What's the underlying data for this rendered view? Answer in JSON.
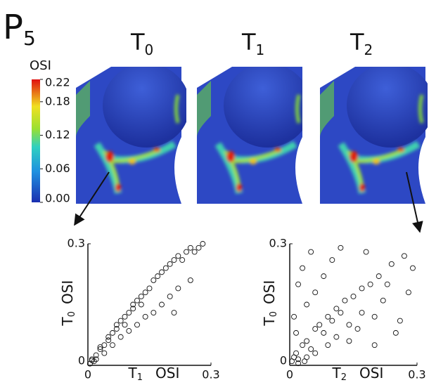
{
  "panel_label": {
    "main": "P",
    "sub": "5"
  },
  "columns": [
    {
      "main": "T",
      "sub": "0"
    },
    {
      "main": "T",
      "sub": "1"
    },
    {
      "main": "T",
      "sub": "2"
    }
  ],
  "colorbar": {
    "title": "OSI",
    "lim": [
      0,
      0.22
    ],
    "ticks": [
      0.22,
      0.18,
      0.12,
      0.06,
      {
        "value": 0,
        "label": "0.00"
      }
    ]
  },
  "chart_data": [
    {
      "type": "scatter",
      "color": "#111",
      "xlabel": {
        "main": "T",
        "sub": "1",
        "unit": "OSI"
      },
      "ylabel": {
        "main": "T",
        "sub": "0",
        "unit": "OSI"
      },
      "xlim": [
        0,
        0.3
      ],
      "ylim": [
        0,
        0.3
      ],
      "xticks": [
        0,
        0.3
      ],
      "yticks": [
        0,
        0.3
      ],
      "x": [
        0.01,
        0.02,
        0.03,
        0.04,
        0.05,
        0.06,
        0.07,
        0.08,
        0.09,
        0.1,
        0.11,
        0.12,
        0.13,
        0.14,
        0.15,
        0.16,
        0.17,
        0.18,
        0.19,
        0.2,
        0.21,
        0.22,
        0.23,
        0.24,
        0.25,
        0.26,
        0.27,
        0.28,
        0.02,
        0.04,
        0.06,
        0.08,
        0.1,
        0.12,
        0.14,
        0.16,
        0.18,
        0.2,
        0.22,
        0.25,
        0.005,
        0.01,
        0.015,
        0.03,
        0.05,
        0.07,
        0.09,
        0.11,
        0.13,
        0.21
      ],
      "values": [
        0.012,
        0.025,
        0.04,
        0.05,
        0.062,
        0.08,
        0.09,
        0.11,
        0.12,
        0.13,
        0.15,
        0.16,
        0.17,
        0.18,
        0.19,
        0.21,
        0.22,
        0.23,
        0.24,
        0.25,
        0.26,
        0.27,
        0.26,
        0.28,
        0.29,
        0.28,
        0.29,
        0.3,
        0.015,
        0.03,
        0.05,
        0.07,
        0.085,
        0.1,
        0.12,
        0.13,
        0.15,
        0.17,
        0.19,
        0.21,
        0.004,
        0.015,
        0.01,
        0.045,
        0.07,
        0.1,
        0.1,
        0.14,
        0.15,
        0.13
      ]
    },
    {
      "type": "scatter",
      "color": "#111",
      "xlabel": {
        "main": "T",
        "sub": "2",
        "unit": "OSI"
      },
      "ylabel": {
        "main": "T",
        "sub": "0",
        "unit": "OSI"
      },
      "xlim": [
        0,
        0.3
      ],
      "ylim": [
        0,
        0.3
      ],
      "xticks": [
        0,
        0.3
      ],
      "yticks": [
        0,
        0.3
      ],
      "x": [
        0.005,
        0.01,
        0.015,
        0.02,
        0.03,
        0.04,
        0.05,
        0.06,
        0.07,
        0.08,
        0.09,
        0.1,
        0.11,
        0.12,
        0.13,
        0.15,
        0.17,
        0.19,
        0.21,
        0.24,
        0.27,
        0.29,
        0.01,
        0.02,
        0.03,
        0.04,
        0.05,
        0.06,
        0.08,
        0.1,
        0.12,
        0.14,
        0.16,
        0.18,
        0.2,
        0.22,
        0.25,
        0.28,
        0.02,
        0.04,
        0.06,
        0.09,
        0.11,
        0.14,
        0.17,
        0.2,
        0.23,
        0.26,
        0.015,
        0.035
      ],
      "values": [
        0.01,
        0.02,
        0.03,
        0.015,
        0.05,
        0.06,
        0.04,
        0.09,
        0.1,
        0.08,
        0.12,
        0.11,
        0.14,
        0.13,
        0.16,
        0.17,
        0.19,
        0.2,
        0.22,
        0.25,
        0.27,
        0.24,
        0.12,
        0.2,
        0.24,
        0.15,
        0.28,
        0.18,
        0.22,
        0.26,
        0.29,
        0.06,
        0.09,
        0.28,
        0.12,
        0.16,
        0.08,
        0.18,
        0.005,
        0.02,
        0.03,
        0.05,
        0.07,
        0.1,
        0.13,
        0.05,
        0.2,
        0.11,
        0.08,
        0.01
      ]
    }
  ]
}
